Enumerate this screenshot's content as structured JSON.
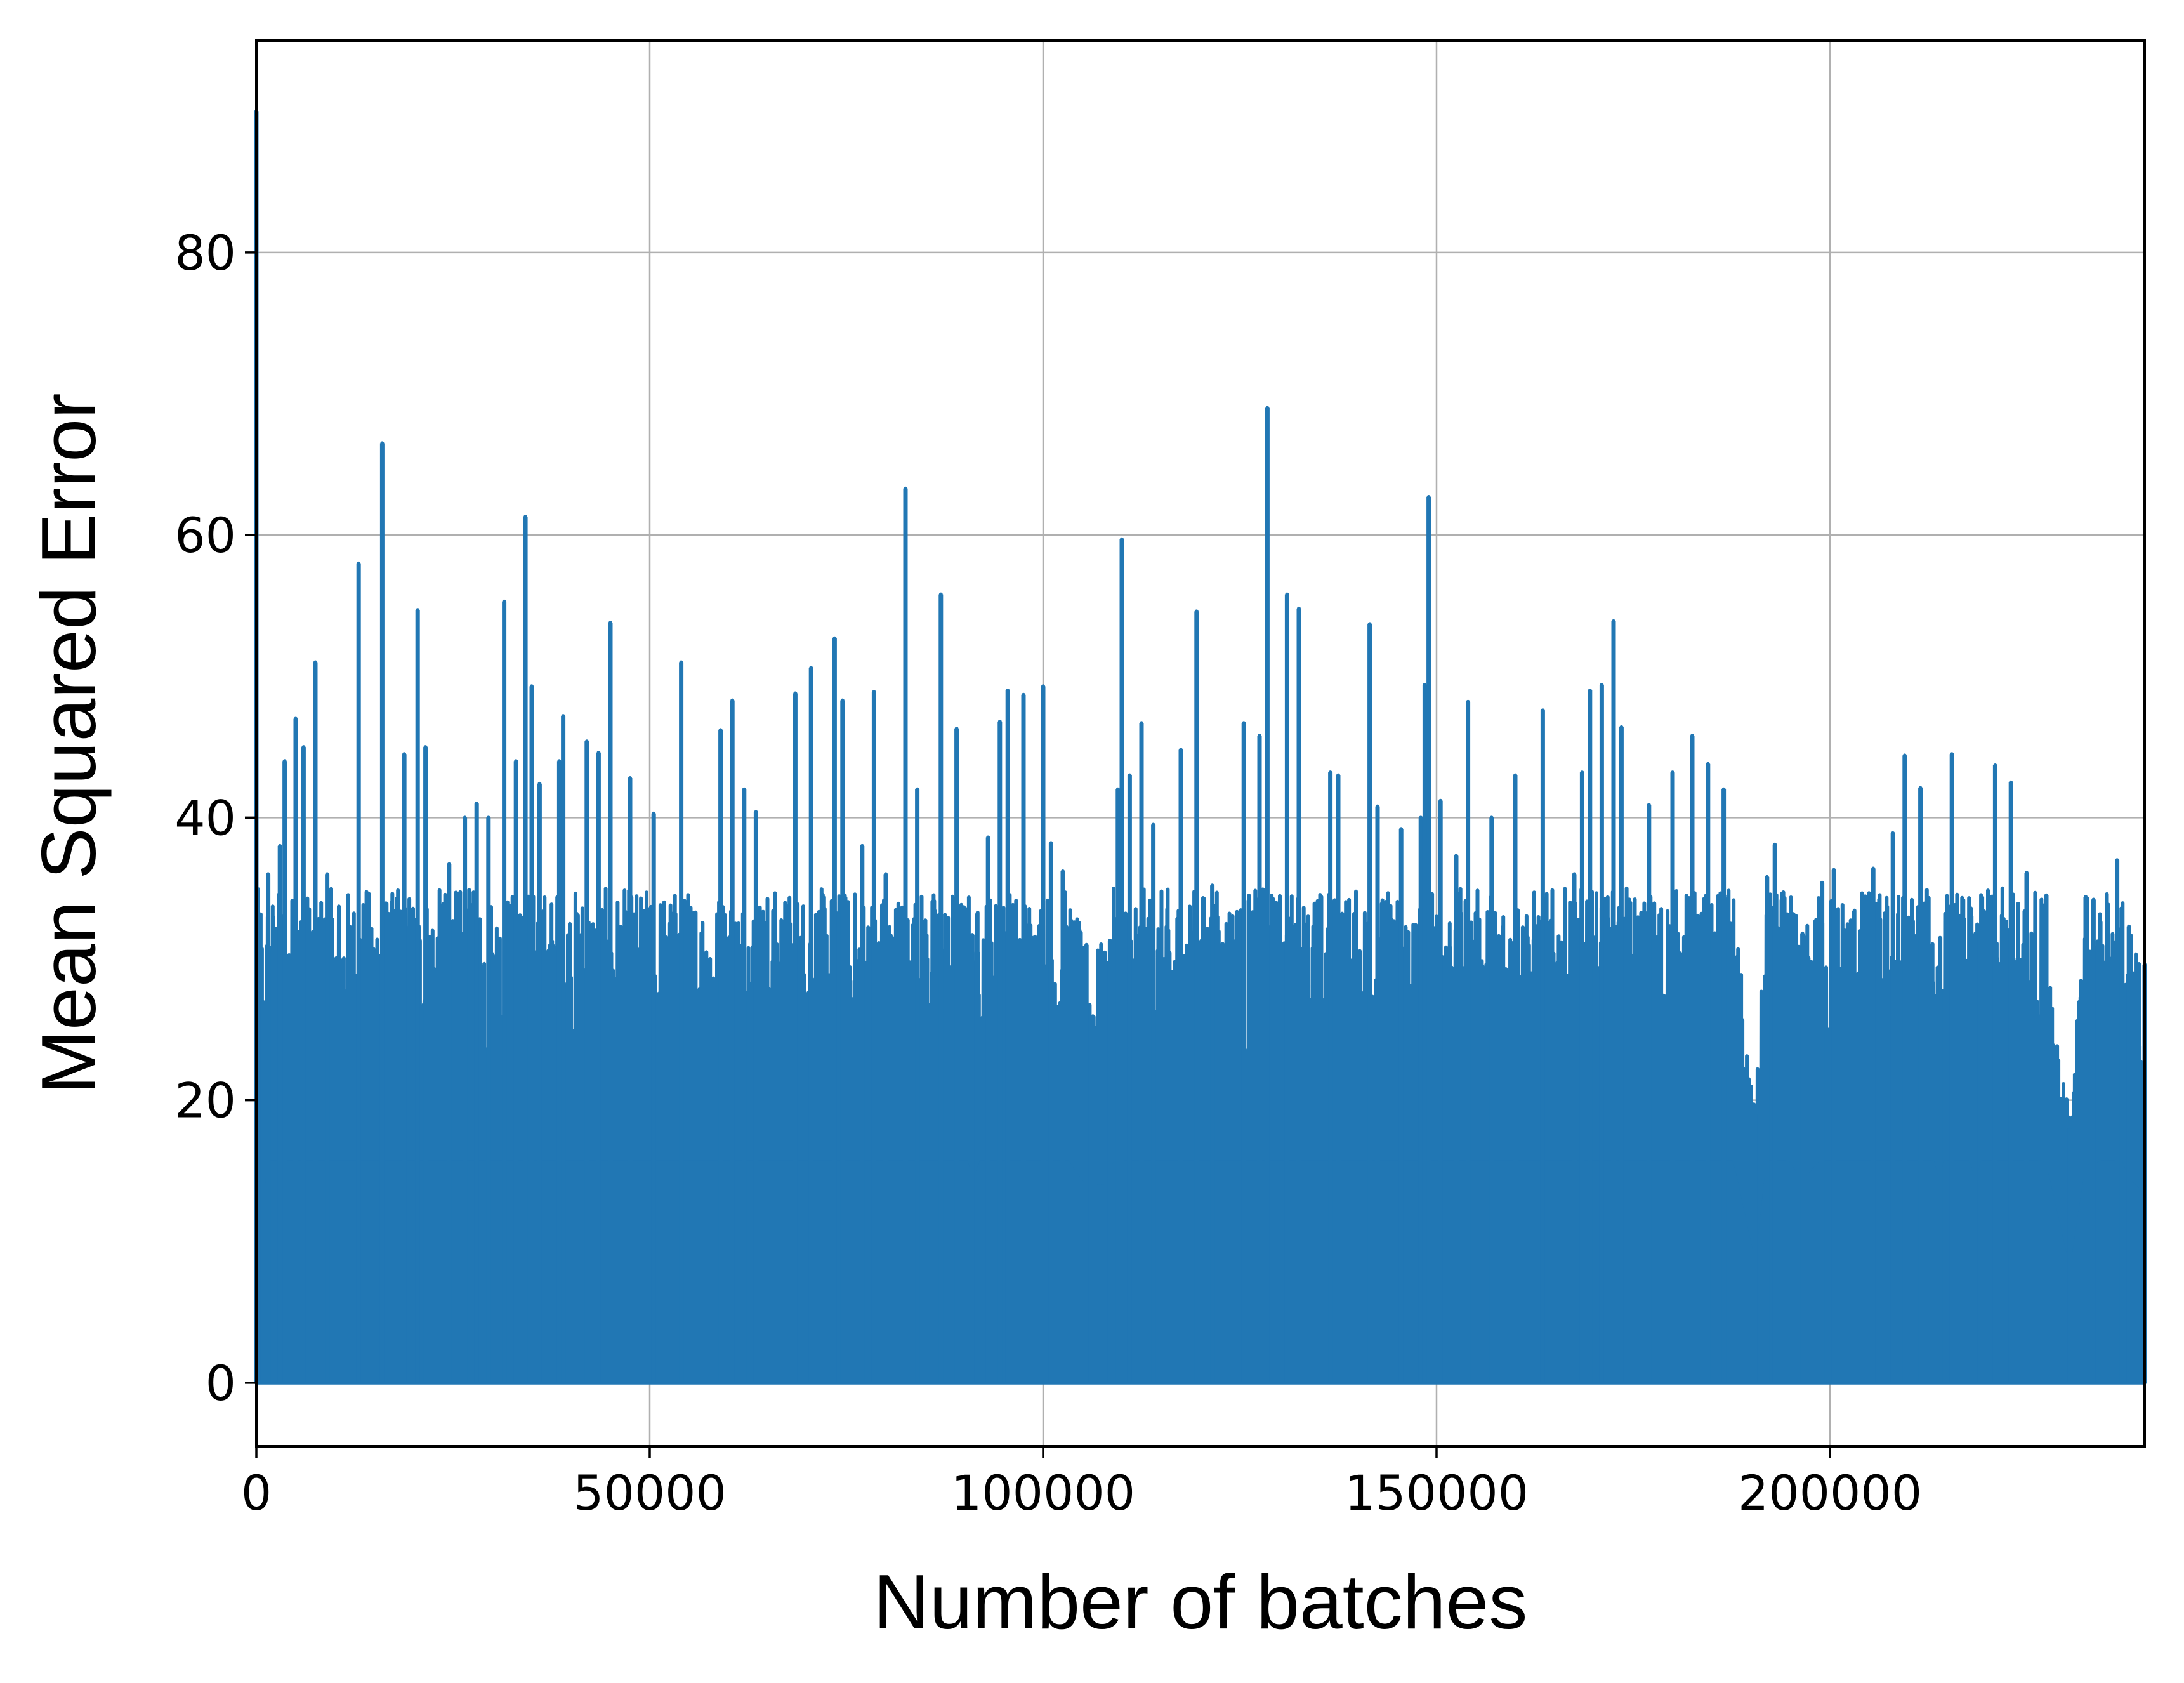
{
  "chart_data": {
    "type": "line",
    "title": "",
    "xlabel": "Number of batches",
    "ylabel": "Mean Squared Error",
    "xlim": [
      0,
      240000
    ],
    "ylim": [
      -4.5,
      95
    ],
    "xticks": [
      0,
      50000,
      100000,
      150000,
      200000
    ],
    "xtick_labels": [
      "0",
      "50000",
      "100000",
      "150000",
      "200000"
    ],
    "yticks": [
      0,
      20,
      40,
      60,
      80
    ],
    "ytick_labels": [
      "0",
      "20",
      "40",
      "60",
      "80"
    ],
    "grid": true,
    "legend": "none",
    "series": [
      {
        "color": "#2177b4",
        "min_value": 0,
        "noise_level": 22,
        "spikes": [
          [
            0,
            90
          ],
          [
            800,
            27
          ],
          [
            1500,
            36
          ],
          [
            3000,
            38
          ],
          [
            3600,
            44
          ],
          [
            5000,
            47
          ],
          [
            6000,
            45
          ],
          [
            7500,
            51
          ],
          [
            9000,
            36
          ],
          [
            13000,
            58
          ],
          [
            16000,
            66.5
          ],
          [
            18800,
            44.5
          ],
          [
            20500,
            54.7
          ],
          [
            21500,
            45
          ],
          [
            24500,
            36.7
          ],
          [
            26500,
            40
          ],
          [
            28000,
            41
          ],
          [
            29500,
            40
          ],
          [
            31500,
            55.3
          ],
          [
            33000,
            44
          ],
          [
            34200,
            61.3
          ],
          [
            35000,
            49.3
          ],
          [
            36000,
            42.4
          ],
          [
            38500,
            44
          ],
          [
            39000,
            47.2
          ],
          [
            42000,
            45.4
          ],
          [
            43500,
            44.6
          ],
          [
            45000,
            53.8
          ],
          [
            47500,
            42.8
          ],
          [
            50500,
            40.3
          ],
          [
            54000,
            51
          ],
          [
            59000,
            46.2
          ],
          [
            60500,
            48.3
          ],
          [
            62000,
            42
          ],
          [
            63500,
            40.4
          ],
          [
            68500,
            48.8
          ],
          [
            70500,
            50.6
          ],
          [
            73500,
            52.7
          ],
          [
            74500,
            48.3
          ],
          [
            77000,
            38
          ],
          [
            78500,
            48.9
          ],
          [
            80000,
            36
          ],
          [
            82500,
            63.3
          ],
          [
            84000,
            42
          ],
          [
            87000,
            55.8
          ],
          [
            89000,
            46.3
          ],
          [
            91000,
            31.7
          ],
          [
            93000,
            38.6
          ],
          [
            94500,
            46.8
          ],
          [
            95500,
            49
          ],
          [
            97500,
            48.7
          ],
          [
            100000,
            49.3
          ],
          [
            101000,
            38.2
          ],
          [
            102500,
            36.2
          ],
          [
            105500,
            31
          ],
          [
            108500,
            31.3
          ],
          [
            109500,
            42
          ],
          [
            110000,
            59.7
          ],
          [
            111000,
            43
          ],
          [
            112500,
            46.7
          ],
          [
            114000,
            39.5
          ],
          [
            117500,
            44.8
          ],
          [
            119500,
            54.6
          ],
          [
            121500,
            35.2
          ],
          [
            125500,
            46.7
          ],
          [
            127500,
            45.8
          ],
          [
            128500,
            69
          ],
          [
            131000,
            55.8
          ],
          [
            132500,
            54.8
          ],
          [
            136500,
            43.2
          ],
          [
            137500,
            43
          ],
          [
            141500,
            53.7
          ],
          [
            142500,
            40.8
          ],
          [
            145500,
            39.2
          ],
          [
            148000,
            40
          ],
          [
            148500,
            49.4
          ],
          [
            149000,
            62.7
          ],
          [
            150500,
            41.2
          ],
          [
            152500,
            37.3
          ],
          [
            154000,
            48.2
          ],
          [
            157000,
            40
          ],
          [
            160000,
            43
          ],
          [
            163500,
            47.6
          ],
          [
            167500,
            36
          ],
          [
            168500,
            43.2
          ],
          [
            169500,
            49
          ],
          [
            171000,
            49.4
          ],
          [
            172500,
            53.9
          ],
          [
            173500,
            46.4
          ],
          [
            177000,
            40.9
          ],
          [
            180000,
            43.2
          ],
          [
            182500,
            45.8
          ],
          [
            184500,
            43.8
          ],
          [
            186500,
            42
          ],
          [
            190500,
            19
          ],
          [
            192000,
            35.8
          ],
          [
            193000,
            38.1
          ],
          [
            196500,
            31.8
          ],
          [
            199000,
            35.4
          ],
          [
            200500,
            36.3
          ],
          [
            205500,
            36.4
          ],
          [
            208000,
            38.9
          ],
          [
            209500,
            44.4
          ],
          [
            211500,
            42.1
          ],
          [
            214000,
            31.5
          ],
          [
            215500,
            44.5
          ],
          [
            218500,
            31.8
          ],
          [
            221000,
            43.7
          ],
          [
            223000,
            42.5
          ],
          [
            225000,
            36.1
          ],
          [
            227500,
            34.5
          ],
          [
            230500,
            18
          ],
          [
            232500,
            34.4
          ],
          [
            233500,
            34.2
          ],
          [
            236500,
            37
          ],
          [
            238000,
            32.3
          ],
          [
            240000,
            29.6
          ]
        ]
      }
    ]
  }
}
